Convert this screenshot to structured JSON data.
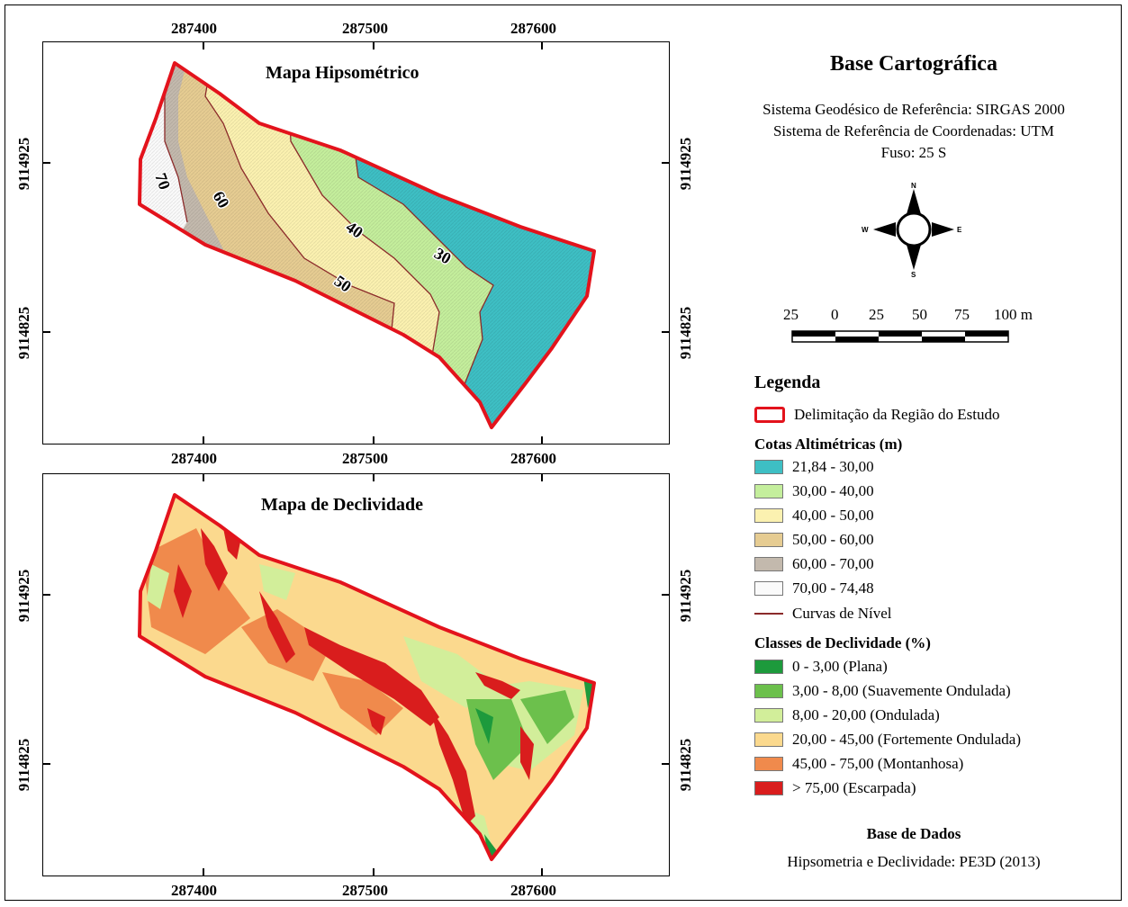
{
  "maps": {
    "top_title": "Mapa Hipsométrico",
    "bottom_title": "Mapa de Declividade",
    "x_ticks": [
      "287400",
      "287500",
      "287600"
    ],
    "y_ticks": [
      "9114925",
      "9114825"
    ],
    "contour_labels": [
      "70",
      "60",
      "50",
      "40",
      "30"
    ]
  },
  "panel": {
    "title": "Base Cartográfica",
    "line1": "Sistema Geodésico de Referência: SIRGAS 2000",
    "line2": "Sistema de Referência de Coordenadas: UTM",
    "line3": "Fuso: 25 S",
    "compass": {
      "n": "N",
      "s": "S",
      "e": "E",
      "w": "W"
    },
    "scale": {
      "labels": [
        "25",
        "0",
        "25",
        "50",
        "75",
        "100 m"
      ]
    },
    "legend_title": "Legenda",
    "boundary_label": "Delimitação da Região do Estudo",
    "boundary_color": "#e3131c",
    "cotas_title": "Cotas Altimétricas (m)",
    "cotas": [
      {
        "label": "21,84 - 30,00",
        "color": "#3ebfc4"
      },
      {
        "label": "30,00 - 40,00",
        "color": "#c4ee9c"
      },
      {
        "label": "40,00 - 50,00",
        "color": "#fbf1b0"
      },
      {
        "label": "50,00 - 60,00",
        "color": "#e6cc92"
      },
      {
        "label": "60,00 - 70,00",
        "color": "#c3b9ad"
      },
      {
        "label": "70,00 - 74,48",
        "color": "#fafafa"
      }
    ],
    "curvas_label": "Curvas de Nível",
    "curvas_color": "#8b2a2a",
    "decl_title": "Classes de Declividade (%)",
    "decl": [
      {
        "label": "0 - 3,00 (Plana)",
        "color": "#1d9a3c"
      },
      {
        "label": "3,00 - 8,00 (Suavemente Ondulada)",
        "color": "#6cc04c"
      },
      {
        "label": "8,00 - 20,00 (Ondulada)",
        "color": "#d2ee9a"
      },
      {
        "label": "20,00 - 45,00 (Fortemente Ondulada)",
        "color": "#fbd98e"
      },
      {
        "label": "45,00 - 75,00 (Montanhosa)",
        "color": "#f08a4c"
      },
      {
        "label": "> 75,00 (Escarpada)",
        "color": "#d91d1d"
      }
    ],
    "db_title": "Base de Dados",
    "db_text": "Hipsometria e Declividade: PE3D (2013)"
  }
}
